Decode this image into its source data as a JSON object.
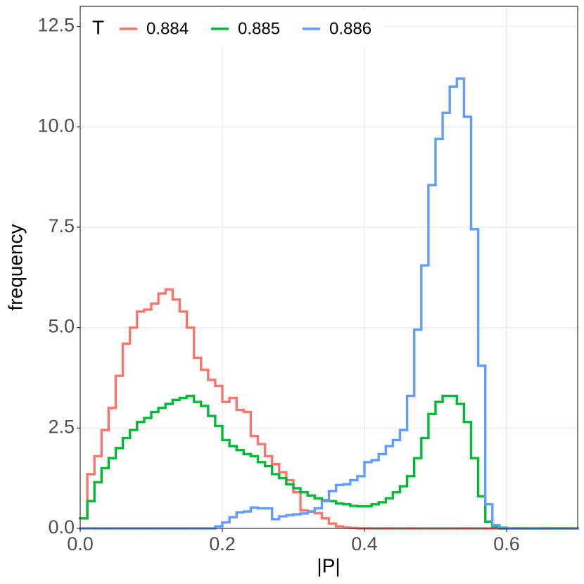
{
  "chart_data": {
    "type": "step_histogram",
    "x_label": "|P|",
    "y_label": "frequency",
    "legend_title": "T",
    "legend_position": "top-left",
    "bins": [
      0,
      0.01,
      0.02,
      0.03,
      0.04,
      0.05,
      0.06,
      0.07,
      0.08,
      0.09,
      0.1,
      0.11,
      0.12,
      0.13,
      0.14,
      0.15,
      0.16,
      0.17,
      0.18,
      0.19,
      0.2,
      0.21,
      0.22,
      0.23,
      0.24,
      0.25,
      0.26,
      0.27,
      0.28,
      0.29,
      0.3,
      0.31,
      0.32,
      0.33,
      0.34,
      0.35,
      0.36,
      0.37,
      0.38,
      0.39,
      0.4,
      0.41,
      0.42,
      0.43,
      0.44,
      0.45,
      0.46,
      0.47,
      0.48,
      0.49,
      0.5,
      0.51,
      0.52,
      0.53,
      0.54,
      0.55,
      0.56,
      0.57,
      0.58,
      0.59,
      0.6,
      0.61,
      0.62,
      0.63,
      0.64,
      0.65,
      0.66,
      0.67,
      0.68,
      0.69,
      0.7
    ],
    "series": [
      {
        "name": "0.884",
        "color": "#F8766D",
        "values": [
          0.25,
          1.35,
          1.8,
          2.45,
          3.0,
          3.8,
          4.6,
          5.0,
          5.4,
          5.45,
          5.6,
          5.85,
          5.95,
          5.7,
          5.4,
          5.0,
          4.25,
          3.95,
          3.7,
          3.55,
          3.15,
          3.25,
          2.95,
          2.9,
          2.3,
          2.1,
          1.8,
          1.6,
          1.4,
          1.2,
          0.9,
          0.45,
          0.42,
          0.38,
          0.25,
          0.12,
          0.05,
          0.02,
          0.01,
          0,
          0,
          0,
          0,
          0,
          0,
          0,
          0,
          0,
          0,
          0,
          0,
          0,
          0,
          0,
          0,
          0,
          0,
          0,
          0,
          0,
          0,
          0,
          0,
          0,
          0,
          0,
          0,
          0,
          0,
          0
        ]
      },
      {
        "name": "0.885",
        "color": "#00BA38",
        "values": [
          0.25,
          0.68,
          1.15,
          1.5,
          1.75,
          2.0,
          2.25,
          2.45,
          2.65,
          2.75,
          2.9,
          3.0,
          3.1,
          3.2,
          3.25,
          3.3,
          3.15,
          3.05,
          2.8,
          2.55,
          2.2,
          2.05,
          1.95,
          1.85,
          1.8,
          1.65,
          1.55,
          1.35,
          1.25,
          1.1,
          1.0,
          0.9,
          0.82,
          0.75,
          0.7,
          0.68,
          0.62,
          0.6,
          0.56,
          0.55,
          0.55,
          0.6,
          0.65,
          0.75,
          0.9,
          1.05,
          1.3,
          1.75,
          2.25,
          2.85,
          3.15,
          3.3,
          3.3,
          3.1,
          2.65,
          1.75,
          0.8,
          0.17,
          0.05,
          0,
          0,
          0,
          0,
          0,
          0,
          0,
          0,
          0,
          0,
          0
        ]
      },
      {
        "name": "0.886",
        "color": "#619CFF",
        "values": [
          0,
          0,
          0,
          0,
          0,
          0,
          0,
          0,
          0,
          0,
          0,
          0,
          0,
          0,
          0,
          0,
          0,
          0,
          0,
          0.05,
          0.15,
          0.28,
          0.4,
          0.42,
          0.52,
          0.5,
          0.5,
          0.23,
          0.3,
          0.33,
          0.35,
          0.37,
          0.42,
          0.5,
          0.68,
          0.93,
          1.08,
          1.1,
          1.2,
          1.3,
          1.65,
          1.7,
          1.85,
          2.05,
          2.2,
          2.45,
          3.3,
          4.95,
          6.55,
          8.55,
          9.7,
          10.35,
          11.0,
          11.2,
          10.25,
          7.45,
          4.05,
          0.6,
          0.08,
          0.02,
          0,
          0,
          0,
          0,
          0,
          0,
          0,
          0,
          0,
          0
        ]
      }
    ],
    "xlim": [
      0,
      0.7
    ],
    "ylim": [
      0,
      13.0
    ],
    "xticks": [
      {
        "value": 0,
        "label": "0.0"
      },
      0.2,
      0.4,
      0.6
    ],
    "yticks": [
      {
        "value": 0,
        "label": "0.0"
      },
      2.5,
      {
        "value": 5,
        "label": "5.0"
      },
      7.5,
      {
        "value": 10,
        "label": "10.0"
      },
      12.5
    ],
    "grid": true
  }
}
